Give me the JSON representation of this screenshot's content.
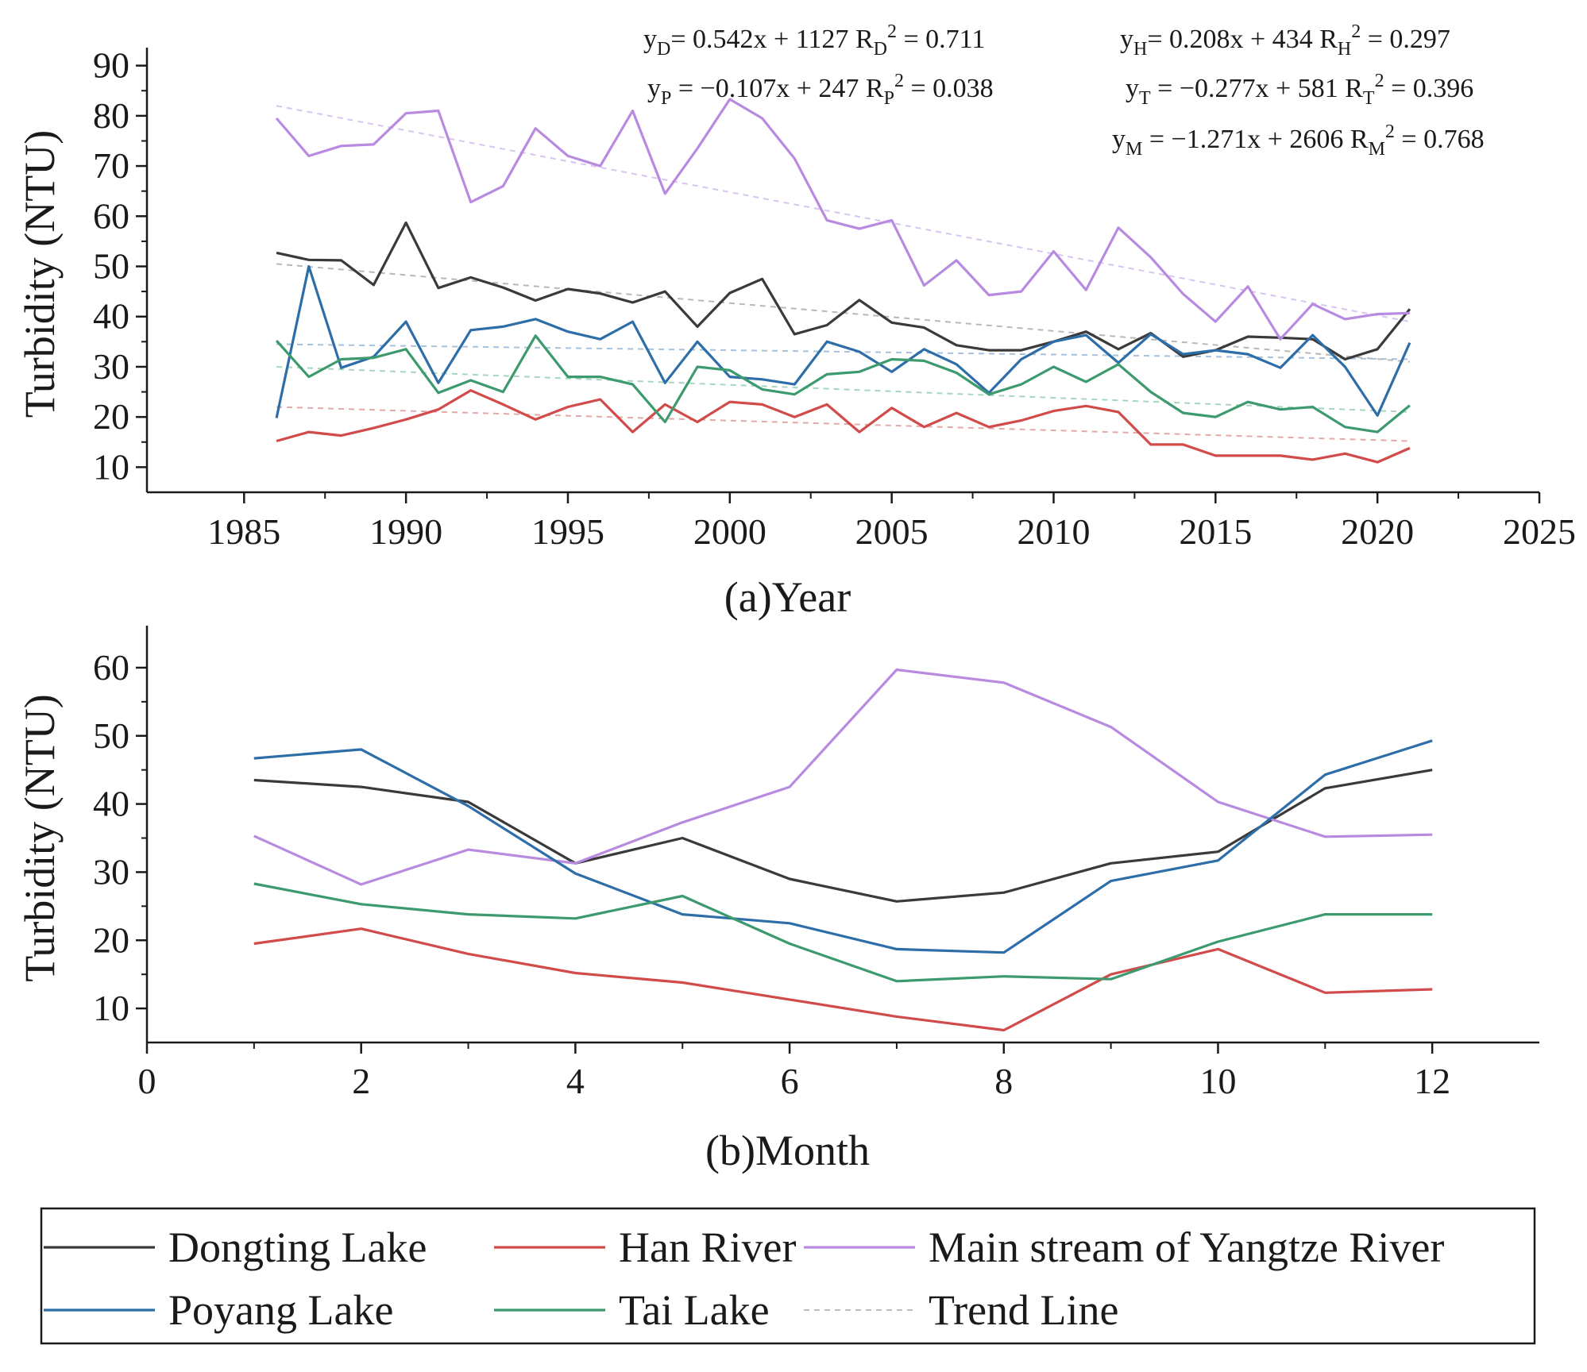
{
  "chart_data": [
    {
      "type": "line",
      "panel": "a",
      "xlabel": "(a)Year",
      "ylabel": "Turbidity (NTU)",
      "xlim": [
        1982,
        2025
      ],
      "ylim": [
        5,
        92
      ],
      "xticks": [
        1985,
        1990,
        1995,
        2000,
        2005,
        2010,
        2015,
        2020,
        2025
      ],
      "yticks": [
        10,
        20,
        30,
        40,
        50,
        60,
        70,
        80,
        90
      ],
      "x": [
        1986,
        1987,
        1988,
        1989,
        1990,
        1991,
        1992,
        1993,
        1994,
        1995,
        1996,
        1997,
        1998,
        1999,
        2000,
        2001,
        2002,
        2003,
        2004,
        2005,
        2006,
        2007,
        2008,
        2009,
        2010,
        2011,
        2012,
        2013,
        2014,
        2015,
        2016,
        2017,
        2018,
        2019,
        2020,
        2021
      ],
      "series": [
        {
          "name": "Dongting Lake",
          "color": "#3a3a3a",
          "values": [
            52.7,
            51.3,
            51.2,
            46.3,
            58.7,
            45.7,
            47.8,
            45.8,
            43.2,
            45.5,
            44.6,
            42.8,
            45.0,
            38.0,
            44.7,
            47.5,
            36.5,
            38.3,
            43.3,
            38.8,
            37.8,
            34.3,
            33.3,
            33.3,
            35.0,
            37.0,
            33.5,
            36.7,
            32.0,
            33.3,
            36.0,
            35.8,
            35.5,
            31.5,
            33.5,
            41.5
          ]
        },
        {
          "name": "Han River",
          "color": "#d24b4b",
          "values": [
            15.2,
            17.0,
            16.3,
            17.8,
            19.5,
            21.5,
            25.3,
            22.5,
            19.5,
            22.0,
            23.5,
            17.0,
            22.5,
            19.0,
            23.0,
            22.5,
            20.0,
            22.5,
            17.0,
            21.8,
            18.0,
            20.8,
            18.0,
            19.3,
            21.2,
            22.2,
            21.0,
            14.5,
            14.5,
            12.3,
            12.3,
            12.3,
            11.5,
            12.7,
            11.0,
            13.8
          ]
        },
        {
          "name": "Main stream of Yangtze River",
          "color": "#b88ae0",
          "values": [
            79.5,
            72.0,
            74.0,
            74.3,
            80.5,
            81.0,
            62.8,
            66.0,
            77.5,
            72.0,
            70.0,
            81.0,
            64.5,
            73.5,
            83.3,
            79.5,
            71.5,
            59.2,
            57.5,
            59.2,
            46.2,
            51.2,
            44.3,
            45.0,
            53.0,
            45.3,
            57.7,
            51.8,
            44.5,
            39.0,
            46.0,
            35.5,
            42.5,
            39.5,
            40.5,
            40.7
          ]
        },
        {
          "name": "Poyang Lake",
          "color": "#2e6ea8",
          "values": [
            19.8,
            50.0,
            29.8,
            32.0,
            39.0,
            26.8,
            37.3,
            38.0,
            39.5,
            37.0,
            35.5,
            39.0,
            26.8,
            35.0,
            28.0,
            27.5,
            26.5,
            35.0,
            33.0,
            29.0,
            33.5,
            30.5,
            24.8,
            31.5,
            35.0,
            36.3,
            30.8,
            36.5,
            32.5,
            33.3,
            32.5,
            29.8,
            36.3,
            30.0,
            20.3,
            34.8
          ]
        },
        {
          "name": "Tai Lake",
          "color": "#3c9a6e",
          "values": [
            35.2,
            28.0,
            31.5,
            31.8,
            33.5,
            24.8,
            27.3,
            25.0,
            36.2,
            28.0,
            28.0,
            26.5,
            19.0,
            30.0,
            29.3,
            25.5,
            24.5,
            28.5,
            29.0,
            31.5,
            31.2,
            28.8,
            24.5,
            26.5,
            30.0,
            27.0,
            30.5,
            25.0,
            20.8,
            20.0,
            23.0,
            21.5,
            22.0,
            18.0,
            17.0,
            22.3
          ]
        }
      ],
      "trend_lines": [
        {
          "name": "Dongting Lake",
          "color": "#b8b8b8",
          "from": [
            1986,
            50.5
          ],
          "to": [
            2021,
            31.0
          ]
        },
        {
          "name": "Han River",
          "color": "#e3a8a8",
          "from": [
            1986,
            22.0
          ],
          "to": [
            2021,
            15.2
          ]
        },
        {
          "name": "Main stream of Yangtze River",
          "color": "#d9c4ef",
          "from": [
            1986,
            82.0
          ],
          "to": [
            2021,
            39.0
          ]
        },
        {
          "name": "Poyang Lake",
          "color": "#a6c2de",
          "from": [
            1986,
            34.5
          ],
          "to": [
            2021,
            31.5
          ]
        },
        {
          "name": "Tai Lake",
          "color": "#a6d6be",
          "from": [
            1986,
            30.0
          ],
          "to": [
            2021,
            21.0
          ]
        }
      ],
      "equations": [
        {
          "id": "eq-dongting",
          "y_base": "y",
          "y_sub": "D",
          "y_rhs": "=   0.542x + 1127",
          "r_base": "R",
          "r_sub": "D",
          "r_sup": "2",
          "r_rhs": " = 0.711"
        },
        {
          "id": "eq-han",
          "y_base": "y",
          "y_sub": "H",
          "y_rhs": "=   0.208x + 434",
          "r_base": "R",
          "r_sub": "H",
          "r_sup": "2",
          "r_rhs": " = 0.297"
        },
        {
          "id": "eq-poyang",
          "y_base": "y",
          "y_sub": "P",
          "y_rhs": " = −0.107x + 247",
          "r_base": "R",
          "r_sub": "P",
          "r_sup": "2",
          "r_rhs": " = 0.038"
        },
        {
          "id": "eq-tai",
          "y_base": "y",
          "y_sub": "T",
          "y_rhs": " = −0.277x + 581",
          "r_base": "R",
          "r_sub": "T",
          "r_sup": "2",
          "r_rhs": " = 0.396"
        },
        {
          "id": "eq-main",
          "y_base": "y",
          "y_sub": "M",
          "y_rhs": " = −1.271x + 2606",
          "r_base": "R",
          "r_sub": "M",
          "r_sup": "2",
          "r_rhs": " = 0.768"
        }
      ]
    },
    {
      "type": "line",
      "panel": "b",
      "xlabel": "(b)Month",
      "ylabel": "Turbidity (NTU)",
      "xlim": [
        0,
        13
      ],
      "ylim": [
        5,
        65
      ],
      "xticks": [
        0,
        2,
        4,
        6,
        8,
        10,
        12
      ],
      "yticks": [
        10,
        20,
        30,
        40,
        50,
        60
      ],
      "x": [
        1,
        2,
        3,
        4,
        5,
        6,
        7,
        8,
        9,
        10,
        11,
        12
      ],
      "series": [
        {
          "name": "Dongting Lake",
          "color": "#3a3a3a",
          "values": [
            43.5,
            42.5,
            40.3,
            31.3,
            35.0,
            29.0,
            25.7,
            27.0,
            31.3,
            33.0,
            42.3,
            45.0
          ]
        },
        {
          "name": "Han River",
          "color": "#d24b4b",
          "values": [
            19.5,
            21.7,
            18.0,
            15.2,
            13.8,
            11.3,
            8.8,
            6.8,
            15.0,
            18.7,
            12.3,
            12.8
          ]
        },
        {
          "name": "Main stream of Yangtze River",
          "color": "#b88ae0",
          "values": [
            35.3,
            28.2,
            33.3,
            31.3,
            37.3,
            42.5,
            59.7,
            57.8,
            51.3,
            40.3,
            35.2,
            35.5
          ]
        },
        {
          "name": "Poyang Lake",
          "color": "#2e6ea8",
          "values": [
            46.7,
            48.0,
            39.7,
            29.8,
            23.8,
            22.5,
            18.7,
            18.2,
            28.7,
            31.7,
            44.3,
            49.3
          ]
        },
        {
          "name": "Tai Lake",
          "color": "#3c9a6e",
          "values": [
            28.3,
            25.3,
            23.8,
            23.2,
            26.5,
            19.5,
            14.0,
            14.7,
            14.3,
            19.8,
            23.8,
            23.8
          ]
        }
      ]
    }
  ],
  "legend": {
    "items": [
      {
        "label": "Dongting Lake",
        "color": "#3a3a3a",
        "dashed": false
      },
      {
        "label": "Han River",
        "color": "#d24b4b",
        "dashed": false
      },
      {
        "label": "Main stream of Yangtze River",
        "color": "#b88ae0",
        "dashed": false
      },
      {
        "label": "Poyang Lake",
        "color": "#2e6ea8",
        "dashed": false
      },
      {
        "label": "Tai Lake",
        "color": "#3c9a6e",
        "dashed": false
      },
      {
        "label": "Trend Line",
        "color": "#bdbdbd",
        "dashed": true
      }
    ]
  }
}
